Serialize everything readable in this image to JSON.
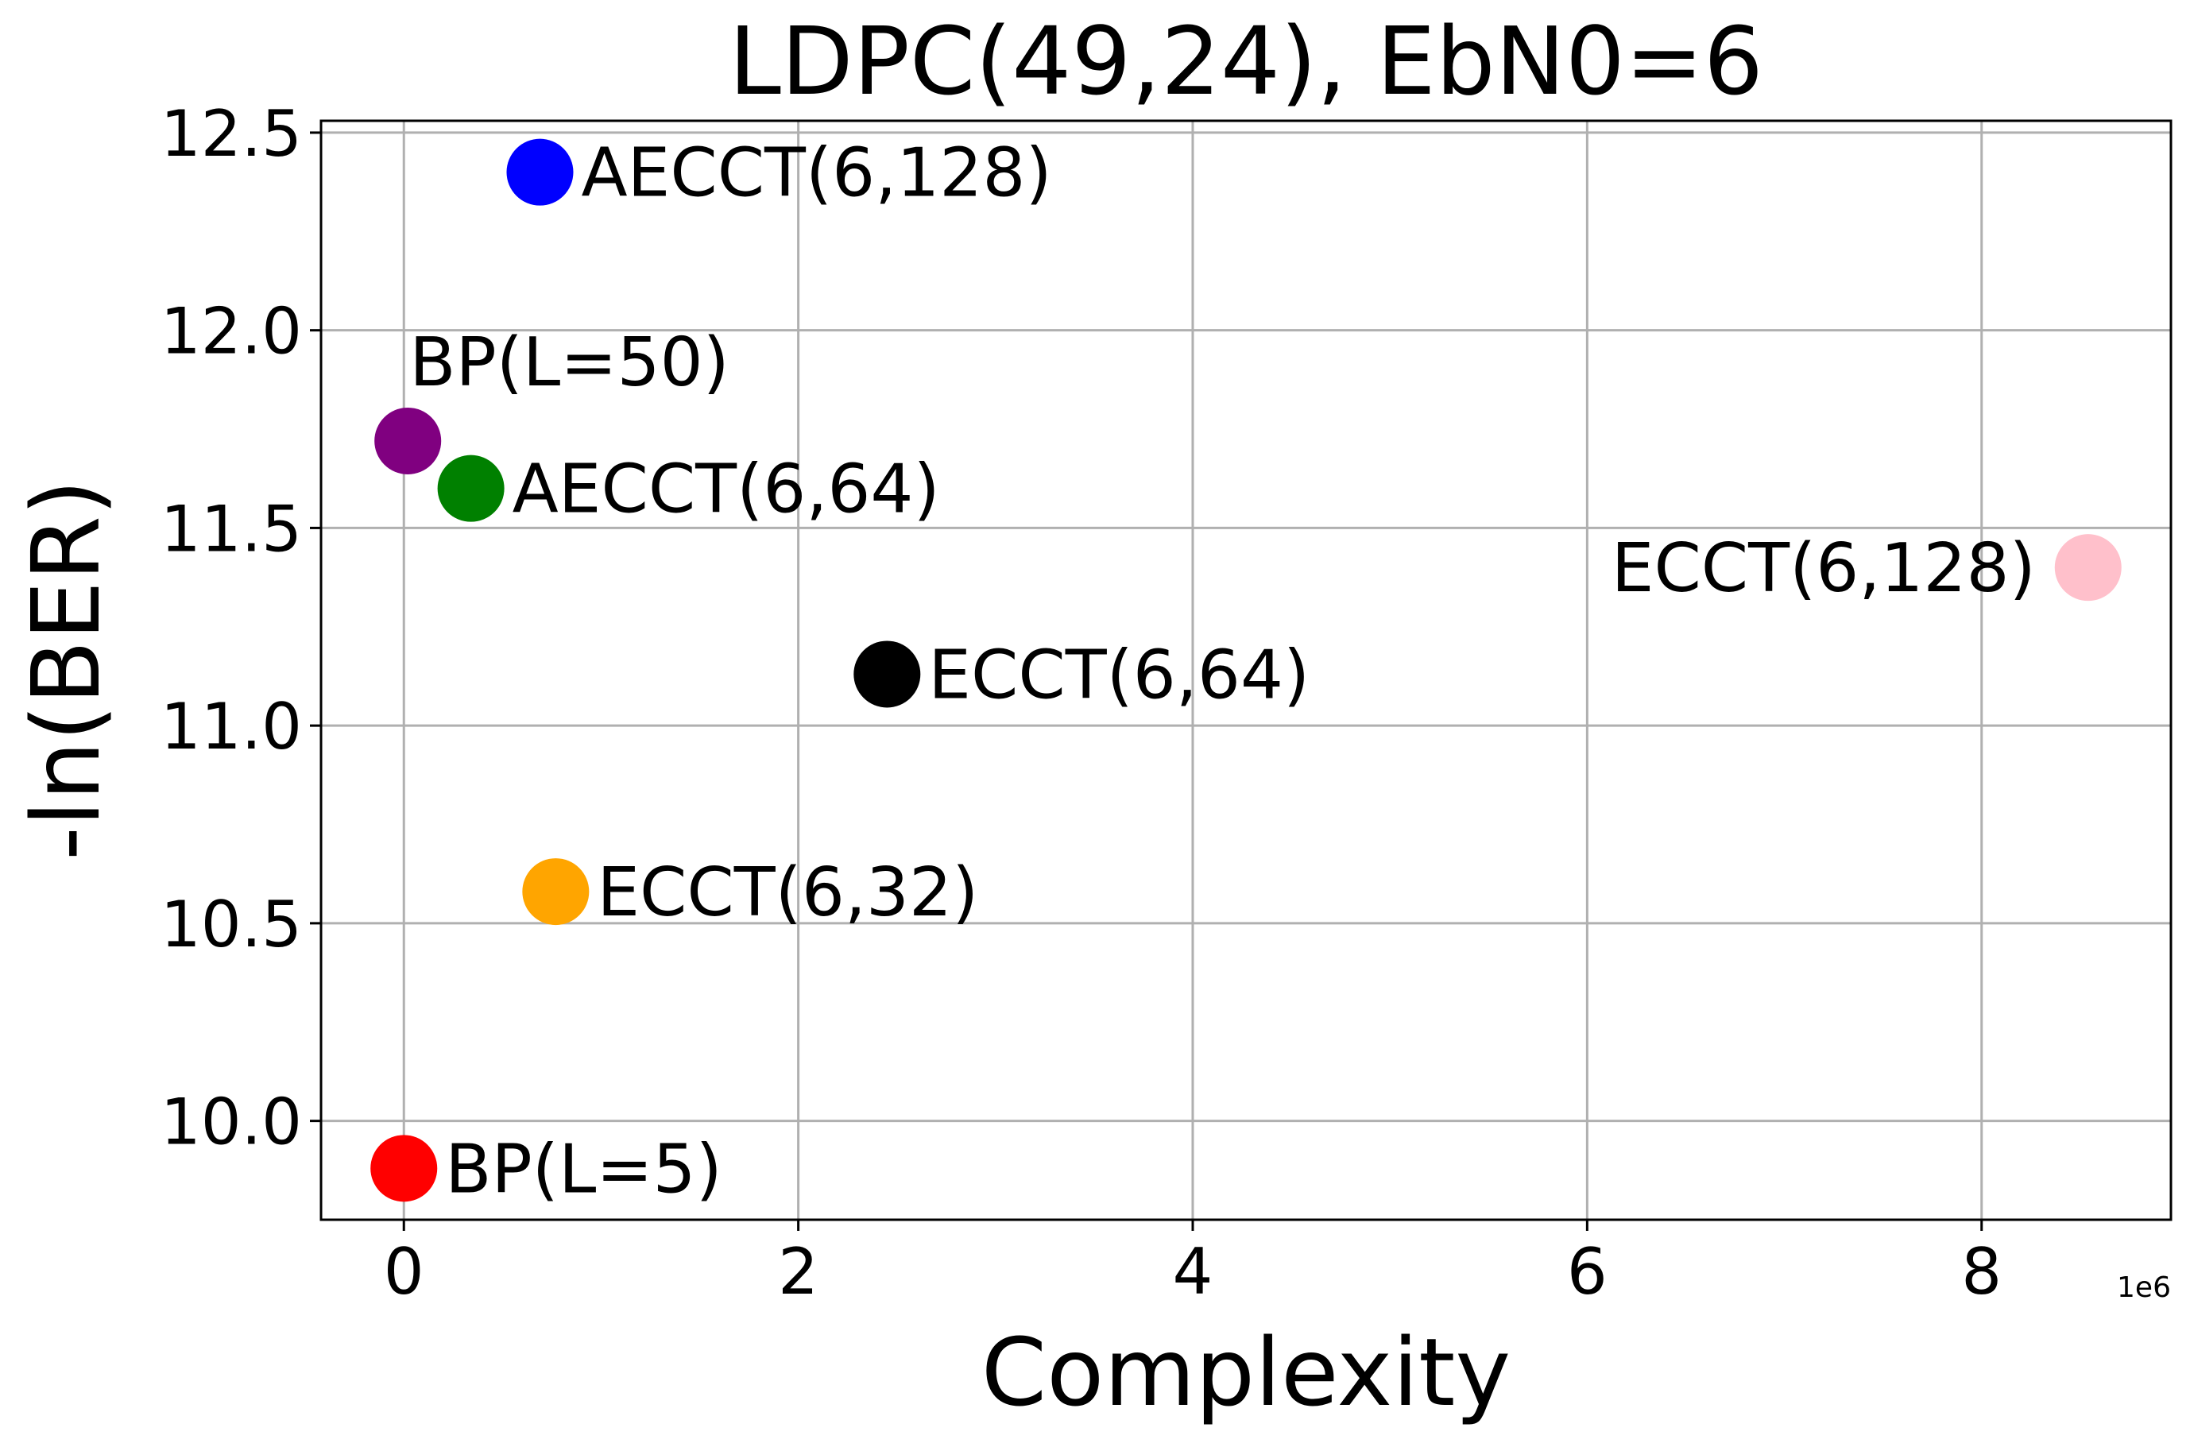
{
  "chart_data": {
    "type": "scatter",
    "title": "LDPC(49,24), EbN0=6",
    "xlabel": "Complexity",
    "ylabel": "-ln(BER)",
    "x_offset_text": "1e6",
    "xlim": [
      -0.42,
      8.96
    ],
    "ylim": [
      9.75,
      12.53
    ],
    "x_ticks": [
      0,
      2,
      4,
      6,
      8
    ],
    "x_tick_labels": [
      "0",
      "2",
      "4",
      "6",
      "8"
    ],
    "y_ticks": [
      10.0,
      10.5,
      11.0,
      11.5,
      12.0,
      12.5
    ],
    "y_tick_labels": [
      "10.0",
      "10.5",
      "11.0",
      "11.5",
      "12.0",
      "12.5"
    ],
    "grid": true,
    "points": [
      {
        "label": "AECCT(6,128)",
        "x": 0.69,
        "y": 12.4,
        "color": "#0000ff",
        "label_side": "right"
      },
      {
        "label": "BP(L=50)",
        "x": 0.02,
        "y": 11.72,
        "color": "#800080",
        "label_side": "above"
      },
      {
        "label": "AECCT(6,64)",
        "x": 0.34,
        "y": 11.6,
        "color": "#008000",
        "label_side": "right"
      },
      {
        "label": "ECCT(6,128)",
        "x": 8.54,
        "y": 11.4,
        "color": "#ffc0cb",
        "label_side": "left"
      },
      {
        "label": "ECCT(6,64)",
        "x": 2.45,
        "y": 11.13,
        "color": "#000000",
        "label_side": "right"
      },
      {
        "label": "ECCT(6,32)",
        "x": 0.77,
        "y": 10.58,
        "color": "#ffa500",
        "label_side": "right"
      },
      {
        "label": "BP(L=5)",
        "x": 0.0,
        "y": 9.88,
        "color": "#ff0000",
        "label_side": "right"
      }
    ]
  }
}
